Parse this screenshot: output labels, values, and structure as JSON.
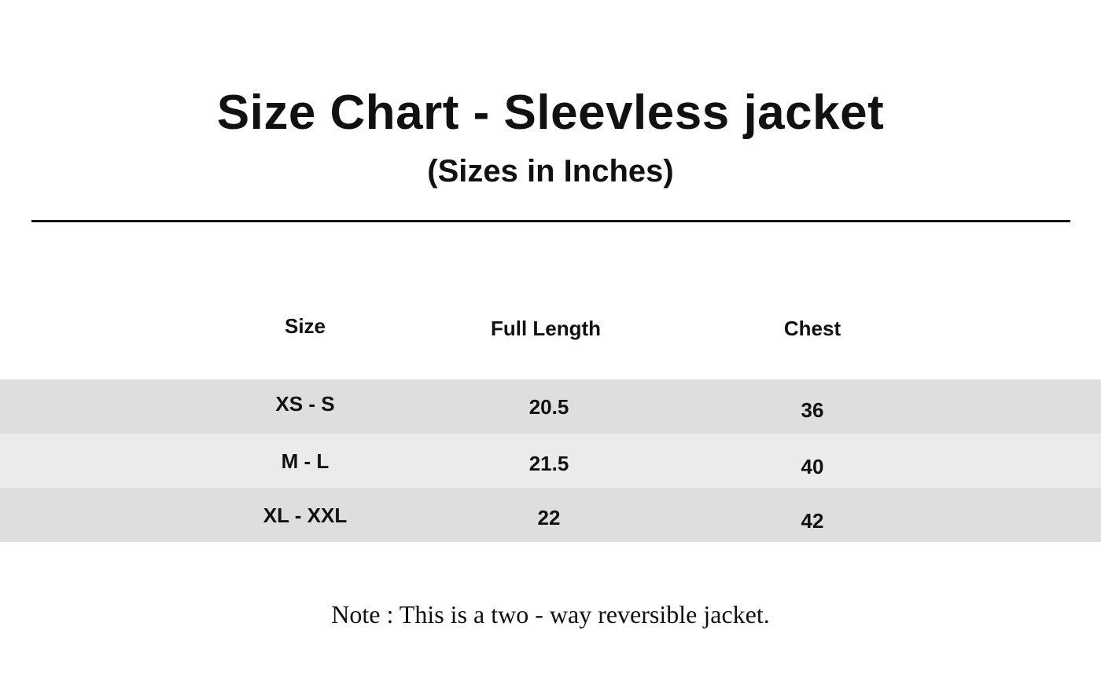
{
  "title": "Size Chart - Sleevless jacket",
  "subtitle": "(Sizes in Inches)",
  "table": {
    "headers": [
      "Size",
      "Full Length",
      "Chest"
    ],
    "rows": [
      [
        "XS - S",
        "20.5",
        "36"
      ],
      [
        "M - L",
        "21.5",
        "40"
      ],
      [
        "XL - XXL",
        "22",
        "42"
      ]
    ],
    "row_colors": [
      "#dfdedf",
      "#ebebeb",
      "#dfdedf"
    ]
  },
  "note": "Note : This is a two - way reversible jacket."
}
